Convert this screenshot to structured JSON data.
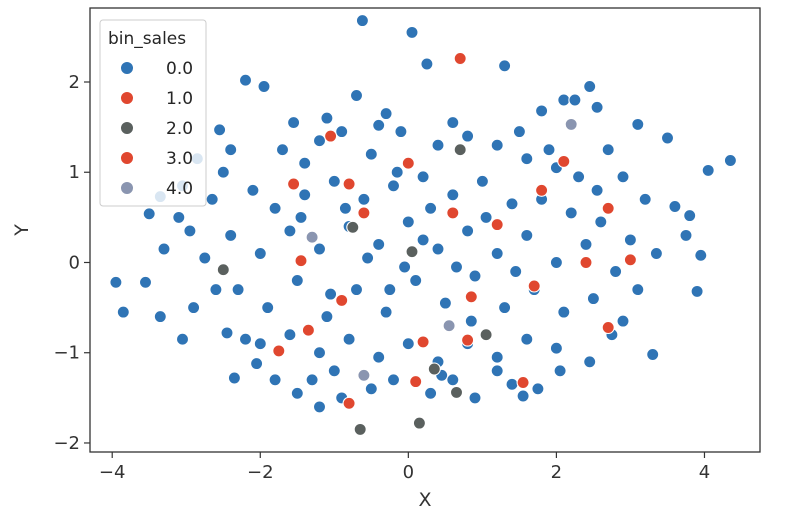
{
  "chart_data": {
    "type": "scatter",
    "xlabel": "X",
    "ylabel": "Y",
    "xlim": [
      -4.3,
      4.75
    ],
    "ylim": [
      -2.1,
      2.82
    ],
    "xticks": [
      -4,
      -2,
      0,
      2,
      4
    ],
    "yticks": [
      -2,
      -1,
      0,
      1,
      2
    ],
    "grid": false,
    "legend": {
      "title": "bin_sales",
      "placement": "top-left"
    },
    "series": [
      {
        "name": "0.0",
        "color": "#2f74b5",
        "points": [
          [
            -0.62,
            2.68
          ],
          [
            0.05,
            2.55
          ],
          [
            0.7,
            2.25
          ],
          [
            1.3,
            2.18
          ],
          [
            -2.2,
            2.02
          ],
          [
            -1.95,
            1.95
          ],
          [
            2.45,
            1.95
          ],
          [
            -0.7,
            1.85
          ],
          [
            2.1,
            1.8
          ],
          [
            2.25,
            1.8
          ],
          [
            -1.1,
            1.6
          ],
          [
            -1.55,
            1.55
          ],
          [
            0.25,
            2.2
          ],
          [
            1.8,
            1.68
          ],
          [
            -0.4,
            1.52
          ],
          [
            2.55,
            1.72
          ],
          [
            3.1,
            1.53
          ],
          [
            3.5,
            1.38
          ],
          [
            4.35,
            1.13
          ],
          [
            4.05,
            1.02
          ],
          [
            -2.55,
            1.47
          ],
          [
            -2.4,
            1.25
          ],
          [
            -2.85,
            1.15
          ],
          [
            -3.05,
            0.85
          ],
          [
            -3.35,
            0.73
          ],
          [
            -3.5,
            0.54
          ],
          [
            -3.3,
            0.15
          ],
          [
            -3.55,
            -0.22
          ],
          [
            -3.95,
            -0.22
          ],
          [
            -3.85,
            -0.55
          ],
          [
            -3.35,
            -0.6
          ],
          [
            -3.05,
            -0.85
          ],
          [
            -2.45,
            -0.78
          ],
          [
            -2.2,
            -0.85
          ],
          [
            -2.05,
            -1.12
          ],
          [
            -2.35,
            -1.28
          ],
          [
            -1.5,
            -1.45
          ],
          [
            -1.2,
            -1.6
          ],
          [
            -0.9,
            -1.5
          ],
          [
            0.3,
            -1.45
          ],
          [
            0.9,
            -1.5
          ],
          [
            1.55,
            -1.48
          ],
          [
            2.05,
            -1.2
          ],
          [
            2.45,
            -1.1
          ],
          [
            3.3,
            -1.02
          ],
          [
            3.9,
            -0.32
          ],
          [
            3.95,
            0.08
          ],
          [
            3.8,
            0.52
          ],
          [
            3.6,
            0.62
          ],
          [
            3.75,
            0.3
          ],
          [
            3.2,
            0.7
          ],
          [
            2.9,
            0.95
          ],
          [
            2.7,
            1.25
          ],
          [
            -2.95,
            0.35
          ],
          [
            -2.75,
            0.05
          ],
          [
            -2.6,
            -0.3
          ],
          [
            -1.3,
            -1.3
          ],
          [
            -0.5,
            -1.4
          ],
          [
            0.45,
            -1.25
          ],
          [
            1.2,
            -1.2
          ],
          [
            -1.7,
            1.25
          ],
          [
            -1.2,
            1.35
          ],
          [
            -0.9,
            1.45
          ],
          [
            -0.5,
            1.2
          ],
          [
            -0.1,
            1.45
          ],
          [
            0.4,
            1.3
          ],
          [
            0.8,
            1.4
          ],
          [
            1.2,
            1.3
          ],
          [
            1.6,
            1.15
          ],
          [
            2.0,
            1.05
          ],
          [
            2.3,
            0.95
          ],
          [
            -2.1,
            0.8
          ],
          [
            -1.8,
            0.6
          ],
          [
            -1.4,
            0.75
          ],
          [
            -1.0,
            0.9
          ],
          [
            -0.6,
            0.7
          ],
          [
            -0.2,
            0.85
          ],
          [
            0.2,
            0.95
          ],
          [
            0.6,
            0.75
          ],
          [
            1.0,
            0.9
          ],
          [
            1.4,
            0.65
          ],
          [
            1.8,
            0.7
          ],
          [
            2.2,
            0.55
          ],
          [
            2.6,
            0.45
          ],
          [
            3.0,
            0.25
          ],
          [
            -2.4,
            0.3
          ],
          [
            -2.0,
            0.1
          ],
          [
            -1.6,
            0.35
          ],
          [
            -1.2,
            0.15
          ],
          [
            -0.8,
            0.4
          ],
          [
            -0.4,
            0.2
          ],
          [
            0.0,
            0.45
          ],
          [
            0.4,
            0.15
          ],
          [
            0.8,
            0.35
          ],
          [
            1.2,
            0.1
          ],
          [
            1.6,
            0.3
          ],
          [
            2.0,
            0.0
          ],
          [
            2.4,
            0.2
          ],
          [
            2.8,
            -0.1
          ],
          [
            -2.3,
            -0.3
          ],
          [
            -1.9,
            -0.5
          ],
          [
            -1.5,
            -0.2
          ],
          [
            -1.1,
            -0.6
          ],
          [
            -0.7,
            -0.3
          ],
          [
            -0.3,
            -0.55
          ],
          [
            0.1,
            -0.2
          ],
          [
            0.5,
            -0.45
          ],
          [
            0.9,
            -0.15
          ],
          [
            1.3,
            -0.5
          ],
          [
            1.7,
            -0.3
          ],
          [
            2.1,
            -0.55
          ],
          [
            2.5,
            -0.4
          ],
          [
            2.9,
            -0.65
          ],
          [
            -2.0,
            -0.9
          ],
          [
            -1.6,
            -0.8
          ],
          [
            -1.2,
            -1.0
          ],
          [
            -0.8,
            -0.85
          ],
          [
            -0.4,
            -1.05
          ],
          [
            0.0,
            -0.9
          ],
          [
            0.4,
            -1.1
          ],
          [
            0.8,
            -0.9
          ],
          [
            1.2,
            -1.05
          ],
          [
            1.6,
            -0.85
          ],
          [
            2.0,
            -0.95
          ],
          [
            -1.8,
            -1.3
          ],
          [
            -1.0,
            -1.2
          ],
          [
            -0.2,
            -1.3
          ],
          [
            0.6,
            -1.3
          ],
          [
            1.4,
            -1.35
          ],
          [
            1.75,
            -1.4
          ],
          [
            -3.1,
            0.5
          ],
          [
            -2.9,
            -0.5
          ],
          [
            -2.65,
            0.7
          ],
          [
            -2.5,
            1.0
          ],
          [
            2.75,
            -0.8
          ],
          [
            2.55,
            0.8
          ],
          [
            3.35,
            0.1
          ],
          [
            3.1,
            -0.3
          ],
          [
            -1.4,
            1.1
          ],
          [
            -0.3,
            1.65
          ],
          [
            0.6,
            1.55
          ],
          [
            1.5,
            1.45
          ],
          [
            1.9,
            1.25
          ],
          [
            -0.15,
            1.0
          ],
          [
            0.3,
            0.6
          ],
          [
            -0.55,
            0.05
          ],
          [
            0.65,
            -0.05
          ],
          [
            -0.05,
            -0.05
          ],
          [
            0.2,
            0.25
          ],
          [
            -0.25,
            -0.3
          ],
          [
            1.05,
            0.5
          ],
          [
            -1.05,
            -0.35
          ],
          [
            1.45,
            -0.1
          ],
          [
            -1.45,
            0.5
          ],
          [
            0.85,
            -0.65
          ],
          [
            -0.85,
            0.6
          ]
        ]
      },
      {
        "name": "1.0",
        "color": "#e0472f",
        "points": [
          [
            0.7,
            2.26
          ],
          [
            -1.55,
            0.87
          ],
          [
            -1.45,
            0.02
          ],
          [
            -0.9,
            -0.42
          ],
          [
            -1.75,
            -0.98
          ],
          [
            -0.6,
            0.55
          ],
          [
            0.6,
            0.55
          ],
          [
            0.0,
            1.1
          ],
          [
            1.2,
            0.42
          ],
          [
            1.8,
            0.8
          ],
          [
            2.1,
            1.12
          ],
          [
            2.4,
            0.0
          ],
          [
            2.7,
            0.6
          ],
          [
            3.0,
            0.03
          ],
          [
            1.7,
            -0.26
          ],
          [
            0.85,
            -0.38
          ],
          [
            0.2,
            -0.88
          ],
          [
            0.1,
            -1.32
          ],
          [
            1.55,
            -1.33
          ],
          [
            2.7,
            -0.72
          ],
          [
            -0.8,
            -1.56
          ],
          [
            -1.05,
            1.4
          ]
        ]
      },
      {
        "name": "2.0",
        "color": "#5a605e",
        "points": [
          [
            -0.65,
            -1.85
          ],
          [
            0.15,
            -1.78
          ],
          [
            0.65,
            -1.44
          ],
          [
            0.35,
            -1.18
          ],
          [
            -0.75,
            0.39
          ],
          [
            0.05,
            0.12
          ],
          [
            -2.5,
            -0.08
          ],
          [
            1.05,
            -0.8
          ],
          [
            0.7,
            1.25
          ]
        ]
      },
      {
        "name": "3.0",
        "color": "#e0472f",
        "points": [
          [
            -0.8,
            0.87
          ],
          [
            -1.35,
            -0.75
          ],
          [
            0.8,
            -0.86
          ]
        ]
      },
      {
        "name": "4.0",
        "color": "#8a95b0",
        "points": [
          [
            2.2,
            1.53
          ],
          [
            -1.3,
            0.28
          ],
          [
            0.55,
            -0.7
          ],
          [
            -0.6,
            -1.25
          ]
        ]
      }
    ]
  }
}
